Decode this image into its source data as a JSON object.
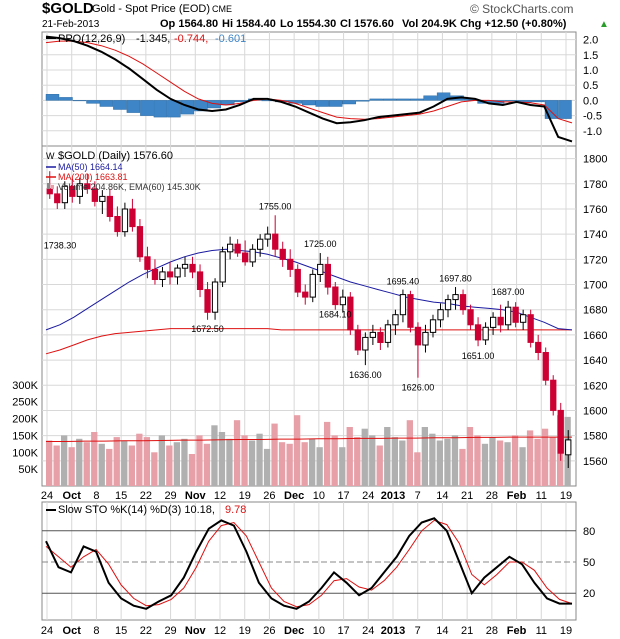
{
  "header": {
    "symbol": "$GOLD",
    "name": "Gold - Spot Price (EOD)",
    "exchange": "CME",
    "watermark": "© StockCharts.com",
    "date": "21-Feb-2013",
    "open": "Op 1564.80",
    "high": "Hi 1584.40",
    "low": "Lo 1554.30",
    "close": "Cl 1576.60",
    "volume": "Vol 204.9K",
    "change": "Chg +12.50 (+0.80%)",
    "change_arrow": "▲"
  },
  "legend": {
    "ppo_label": "PPO(12,26,9)",
    "ppo_value": "-1.345,",
    "ppo_signal": "-0.744,",
    "ppo_hist": "-0.601",
    "price_label": "$GOLD (Daily) 1576.60",
    "ma50": "MA(50) 1664.14",
    "ma200": "MA(200) 1663.81",
    "volume_label": "Volume 204.86K, EMA(60) 145.30K",
    "sto_label": "Slow STO %K(14) %D(3) 10.18,",
    "sto_d": "9.78"
  },
  "colors": {
    "up": "#000000",
    "down": "#cc0033",
    "ma50": "#1a1aa0",
    "ma200": "#dd1111",
    "ppo_hist": "#3d85c6",
    "vol_up": "#b0b0b0",
    "vol_down": "#e8a0a8",
    "grid": "#d8d8d8"
  },
  "x_axis": {
    "labels": [
      "24",
      "Oct",
      "8",
      "15",
      "22",
      "29",
      "Nov",
      "12",
      "19",
      "26",
      "Dec",
      "10",
      "17",
      "24",
      "2013",
      "7",
      "14",
      "21",
      "28",
      "Feb",
      "11",
      "19"
    ],
    "bold": [
      "Oct",
      "Nov",
      "Dec",
      "2013",
      "Feb"
    ]
  },
  "chart_data": [
    {
      "type": "line",
      "name": "PPO panel",
      "title": "PPO(12,26,9)",
      "ylim": [
        -1.5,
        2.25
      ],
      "yticks": [
        "2.0",
        "1.5",
        "1.0",
        "0.5",
        "0.0",
        "-0.5",
        "-1.0"
      ],
      "ppo": [
        2.1,
        2.05,
        1.95,
        1.8,
        1.6,
        1.35,
        1.05,
        0.7,
        0.35,
        0.05,
        -0.15,
        -0.3,
        -0.35,
        -0.3,
        -0.15,
        0.05,
        0.05,
        -0.05,
        -0.2,
        -0.4,
        -0.6,
        -0.75,
        -0.72,
        -0.65,
        -0.55,
        -0.5,
        -0.45,
        -0.4,
        -0.2,
        0.05,
        0.1,
        0.05,
        -0.1,
        -0.15,
        -0.05,
        -0.15,
        -0.2,
        -1.2,
        -1.35
      ],
      "signal": [
        1.9,
        1.95,
        1.95,
        1.9,
        1.8,
        1.65,
        1.45,
        1.2,
        0.9,
        0.6,
        0.3,
        0.05,
        -0.1,
        -0.15,
        -0.1,
        0.0,
        0.05,
        0.0,
        -0.1,
        -0.25,
        -0.4,
        -0.55,
        -0.6,
        -0.62,
        -0.6,
        -0.55,
        -0.5,
        -0.45,
        -0.35,
        -0.2,
        -0.05,
        0.0,
        0.0,
        -0.05,
        -0.05,
        -0.08,
        -0.15,
        -0.6,
        -0.74
      ],
      "histogram": [
        0.2,
        0.1,
        0.0,
        -0.1,
        -0.2,
        -0.3,
        -0.4,
        -0.5,
        -0.55,
        -0.55,
        -0.45,
        -0.35,
        -0.25,
        -0.15,
        -0.05,
        0.05,
        0.0,
        -0.05,
        -0.1,
        -0.15,
        -0.2,
        -0.2,
        -0.12,
        -0.03,
        0.05,
        0.05,
        0.05,
        0.05,
        0.15,
        0.25,
        0.15,
        0.05,
        -0.1,
        -0.1,
        0.0,
        -0.07,
        -0.05,
        -0.6,
        -0.6
      ]
    },
    {
      "type": "candlestick",
      "name": "Price panel",
      "title": "$GOLD (Daily) 1576.60",
      "ylim": [
        1540,
        1810
      ],
      "yticks": [
        "1800",
        "1780",
        "1760",
        "1740",
        "1720",
        "1700",
        "1680",
        "1660",
        "1640",
        "1620",
        "1600",
        "1580",
        "1560"
      ],
      "ohlc": [
        [
          1776,
          1790,
          1768,
          1772
        ],
        [
          1772,
          1778,
          1760,
          1765
        ],
        [
          1765,
          1782,
          1760,
          1778
        ],
        [
          1778,
          1784,
          1765,
          1770
        ],
        [
          1770,
          1785,
          1764,
          1780
        ],
        [
          1780,
          1788,
          1772,
          1776
        ],
        [
          1776,
          1782,
          1762,
          1766
        ],
        [
          1766,
          1775,
          1756,
          1770
        ],
        [
          1770,
          1776,
          1750,
          1754
        ],
        [
          1754,
          1762,
          1738,
          1742
        ],
        [
          1742,
          1765,
          1738,
          1760
        ],
        [
          1760,
          1768,
          1742,
          1746
        ],
        [
          1746,
          1752,
          1718,
          1722
        ],
        [
          1722,
          1730,
          1705,
          1712
        ],
        [
          1712,
          1720,
          1700,
          1704
        ],
        [
          1704,
          1714,
          1698,
          1710
        ],
        [
          1710,
          1718,
          1700,
          1706
        ],
        [
          1706,
          1716,
          1700,
          1713
        ],
        [
          1713,
          1722,
          1706,
          1716
        ],
        [
          1716,
          1722,
          1705,
          1710
        ],
        [
          1710,
          1716,
          1690,
          1696
        ],
        [
          1696,
          1702,
          1672,
          1678
        ],
        [
          1678,
          1705,
          1672,
          1702
        ],
        [
          1702,
          1730,
          1698,
          1726
        ],
        [
          1726,
          1738,
          1720,
          1732
        ],
        [
          1732,
          1736,
          1722,
          1725
        ],
        [
          1725,
          1735,
          1715,
          1718
        ],
        [
          1718,
          1732,
          1714,
          1728
        ],
        [
          1728,
          1740,
          1722,
          1736
        ],
        [
          1736,
          1746,
          1730,
          1740
        ],
        [
          1740,
          1755,
          1722,
          1728
        ],
        [
          1728,
          1734,
          1714,
          1720
        ],
        [
          1720,
          1728,
          1706,
          1712
        ],
        [
          1712,
          1716,
          1690,
          1694
        ],
        [
          1694,
          1700,
          1684,
          1690
        ],
        [
          1690,
          1712,
          1686,
          1708
        ],
        [
          1708,
          1725,
          1702,
          1716
        ],
        [
          1716,
          1722,
          1692,
          1698
        ],
        [
          1698,
          1702,
          1680,
          1684
        ],
        [
          1684,
          1696,
          1678,
          1690
        ],
        [
          1690,
          1694,
          1660,
          1664
        ],
        [
          1664,
          1668,
          1644,
          1648
        ],
        [
          1648,
          1662,
          1636,
          1658
        ],
        [
          1658,
          1668,
          1652,
          1662
        ],
        [
          1662,
          1666,
          1648,
          1654
        ],
        [
          1654,
          1672,
          1650,
          1668
        ],
        [
          1668,
          1680,
          1660,
          1676
        ],
        [
          1676,
          1696,
          1670,
          1692
        ],
        [
          1692,
          1695,
          1662,
          1666
        ],
        [
          1666,
          1670,
          1626,
          1652
        ],
        [
          1652,
          1668,
          1646,
          1662
        ],
        [
          1662,
          1676,
          1658,
          1672
        ],
        [
          1672,
          1685,
          1666,
          1680
        ],
        [
          1680,
          1692,
          1674,
          1688
        ],
        [
          1688,
          1698,
          1680,
          1692
        ],
        [
          1692,
          1696,
          1676,
          1680
        ],
        [
          1680,
          1684,
          1664,
          1668
        ],
        [
          1668,
          1674,
          1651,
          1656
        ],
        [
          1656,
          1670,
          1652,
          1666
        ],
        [
          1666,
          1678,
          1660,
          1674
        ],
        [
          1674,
          1684,
          1662,
          1668
        ],
        [
          1668,
          1687,
          1664,
          1682
        ],
        [
          1682,
          1686,
          1666,
          1670
        ],
        [
          1670,
          1680,
          1664,
          1676
        ],
        [
          1676,
          1680,
          1650,
          1654
        ],
        [
          1654,
          1660,
          1640,
          1646
        ],
        [
          1646,
          1650,
          1620,
          1624
        ],
        [
          1624,
          1628,
          1596,
          1600
        ],
        [
          1600,
          1606,
          1560,
          1566
        ],
        [
          1564.8,
          1584.4,
          1554.3,
          1576.6
        ]
      ],
      "ma50": [
        1664,
        1668,
        1674,
        1681,
        1688,
        1695,
        1702,
        1708,
        1713,
        1718,
        1722,
        1725,
        1727,
        1728,
        1727,
        1726,
        1724,
        1721,
        1718,
        1714,
        1710,
        1706,
        1702,
        1699,
        1696,
        1693,
        1690,
        1688,
        1686,
        1685,
        1683,
        1682,
        1681,
        1680,
        1678,
        1674,
        1670,
        1665,
        1664
      ],
      "ma200": [
        1645,
        1648,
        1652,
        1656,
        1659,
        1661,
        1662,
        1663,
        1664,
        1665,
        1665,
        1665,
        1665,
        1665,
        1665,
        1665,
        1665,
        1664,
        1664,
        1664,
        1664,
        1664,
        1664,
        1664,
        1664,
        1664,
        1664,
        1664,
        1664,
        1664,
        1664,
        1664,
        1664,
        1664,
        1664,
        1664,
        1664,
        1664,
        1664
      ],
      "annotations": [
        {
          "text": "1738.30",
          "value": 1738.3,
          "index": 9
        },
        {
          "text": "1672.50",
          "value": 1672.5,
          "index": 21
        },
        {
          "text": "1755.00",
          "value": 1755,
          "index": 30
        },
        {
          "text": "1725.00",
          "value": 1725,
          "index": 36
        },
        {
          "text": "1684.10",
          "value": 1684.1,
          "index": 38
        },
        {
          "text": "1636.00",
          "value": 1636,
          "index": 42
        },
        {
          "text": "1695.40",
          "value": 1695.4,
          "index": 47
        },
        {
          "text": "1626.00",
          "value": 1626,
          "index": 49
        },
        {
          "text": "1697.80",
          "value": 1697.8,
          "index": 54
        },
        {
          "text": "1651.00",
          "value": 1651,
          "index": 57
        },
        {
          "text": "1687.00",
          "value": 1687,
          "index": 61
        }
      ],
      "volume_yticks": [
        "300K",
        "250K",
        "200K",
        "150K",
        "100K",
        "50K"
      ],
      "volume_ylim": [
        0,
        330
      ],
      "volume": [
        135,
        120,
        150,
        115,
        140,
        130,
        160,
        125,
        110,
        145,
        135,
        120,
        155,
        145,
        100,
        150,
        120,
        130,
        140,
        95,
        150,
        125,
        180,
        160,
        140,
        195,
        150,
        135,
        155,
        110,
        185,
        130,
        125,
        210,
        130,
        140,
        115,
        190,
        150,
        115,
        175,
        145,
        170,
        150,
        120,
        175,
        145,
        135,
        195,
        100,
        175,
        155,
        135,
        140,
        150,
        110,
        175,
        150,
        125,
        145,
        135,
        130,
        150,
        115,
        165,
        140,
        170,
        145,
        210,
        205
      ],
      "volume_ema": [
        132,
        132,
        133,
        133,
        134,
        134,
        135,
        136,
        136,
        137,
        138,
        138,
        139,
        139,
        140,
        140,
        141,
        141,
        142,
        142,
        143,
        143,
        144,
        144,
        145,
        145,
        145,
        145
      ]
    },
    {
      "type": "line",
      "name": "Stochastic panel",
      "title": "Slow STO %K(14) %D(3)",
      "ylim": [
        0,
        100
      ],
      "yticks": [
        "80",
        "50",
        "20"
      ],
      "k": [
        70,
        45,
        40,
        65,
        60,
        30,
        15,
        8,
        5,
        12,
        18,
        35,
        60,
        82,
        90,
        85,
        60,
        30,
        15,
        8,
        5,
        12,
        25,
        40,
        30,
        18,
        25,
        40,
        55,
        75,
        88,
        92,
        80,
        50,
        20,
        35,
        45,
        55,
        48,
        30,
        15,
        10,
        10
      ],
      "d": [
        65,
        55,
        45,
        55,
        62,
        48,
        28,
        15,
        8,
        9,
        14,
        25,
        45,
        70,
        85,
        88,
        75,
        50,
        25,
        12,
        7,
        9,
        18,
        32,
        34,
        26,
        23,
        32,
        45,
        62,
        80,
        90,
        86,
        68,
        38,
        28,
        38,
        50,
        50,
        42,
        25,
        14,
        10
      ]
    }
  ]
}
